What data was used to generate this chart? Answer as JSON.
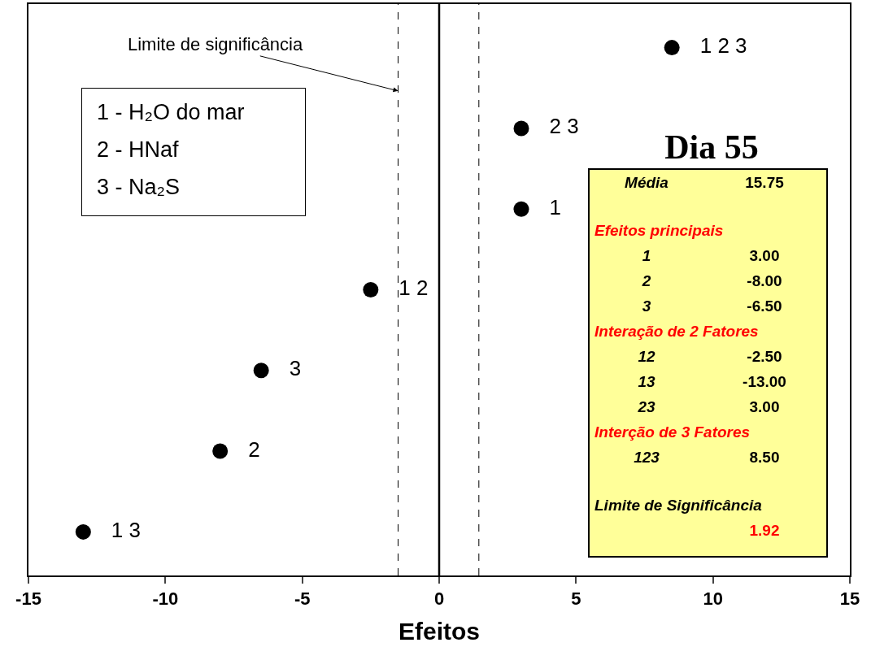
{
  "chart_data": {
    "type": "scatter",
    "orientation": "horizontal",
    "title": "Dia 55",
    "xlabel": "Efeitos",
    "categories": [
      "1 2 3",
      "2 3",
      "1",
      "1 2",
      "3",
      "2",
      "1 3"
    ],
    "values": [
      8.5,
      3,
      3,
      -2.5,
      -6.5,
      -8,
      -13
    ],
    "color": "#000000",
    "marker": "circle",
    "xlim": [
      -15,
      15
    ],
    "xticks": [
      -15,
      -10,
      -5,
      0,
      5,
      10,
      15
    ],
    "tick_labels": "x",
    "grid": false,
    "ref_lines": [
      {
        "axis": "x",
        "value": -1.5,
        "label": "Limite de significância",
        "line_style": "dashed",
        "color": "#000000"
      },
      {
        "axis": "x",
        "value": 1.45,
        "line_style": "dashed",
        "color": "#000000"
      },
      {
        "axis": "x",
        "value": 0,
        "line_style": "solid",
        "color": "#000000"
      }
    ],
    "annotations": [
      "1 - H₂O do mar",
      "2 - HNaf",
      "3 - Na₂S",
      "Média",
      "15.75",
      "Efeitos principais",
      "1",
      "3.00",
      "2",
      "-8.00",
      "3",
      "-6.50",
      "Interação de 2 Fatores",
      "12",
      "-2.50",
      "13",
      "-13.00",
      "23",
      "3.00",
      "Interção de 3 Fatores",
      "123",
      "8.50",
      "Limite de Significância",
      "1.92"
    ]
  }
}
